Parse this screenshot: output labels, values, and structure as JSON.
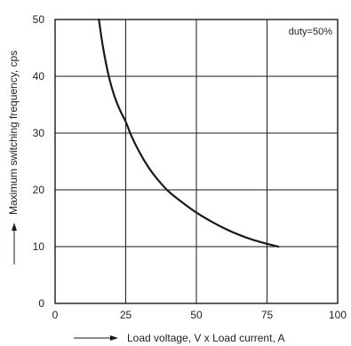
{
  "chart_data": {
    "type": "line",
    "xlabel": "Load voltage, V x Load current, A",
    "ylabel": "Maximum switching frequency, cps",
    "xlim": [
      0,
      100
    ],
    "ylim": [
      0,
      50
    ],
    "x_ticks": [
      "0",
      "25",
      "50",
      "75",
      "100"
    ],
    "y_ticks": [
      "0",
      "10",
      "20",
      "30",
      "40",
      "50"
    ],
    "grid": true,
    "annotation": "duty=50%",
    "series": [
      {
        "x": [
          15.5,
          17,
          19,
          21,
          23,
          25,
          27,
          30,
          33,
          36,
          40,
          45,
          50,
          55,
          60,
          65,
          70,
          75,
          79
        ],
        "y": [
          50,
          45,
          40,
          36.5,
          34,
          32,
          29.5,
          26.5,
          24,
          22,
          19.8,
          17.8,
          16,
          14.5,
          13.2,
          12.1,
          11.2,
          10.5,
          10
        ],
        "color": "#1a1a1a"
      }
    ]
  }
}
